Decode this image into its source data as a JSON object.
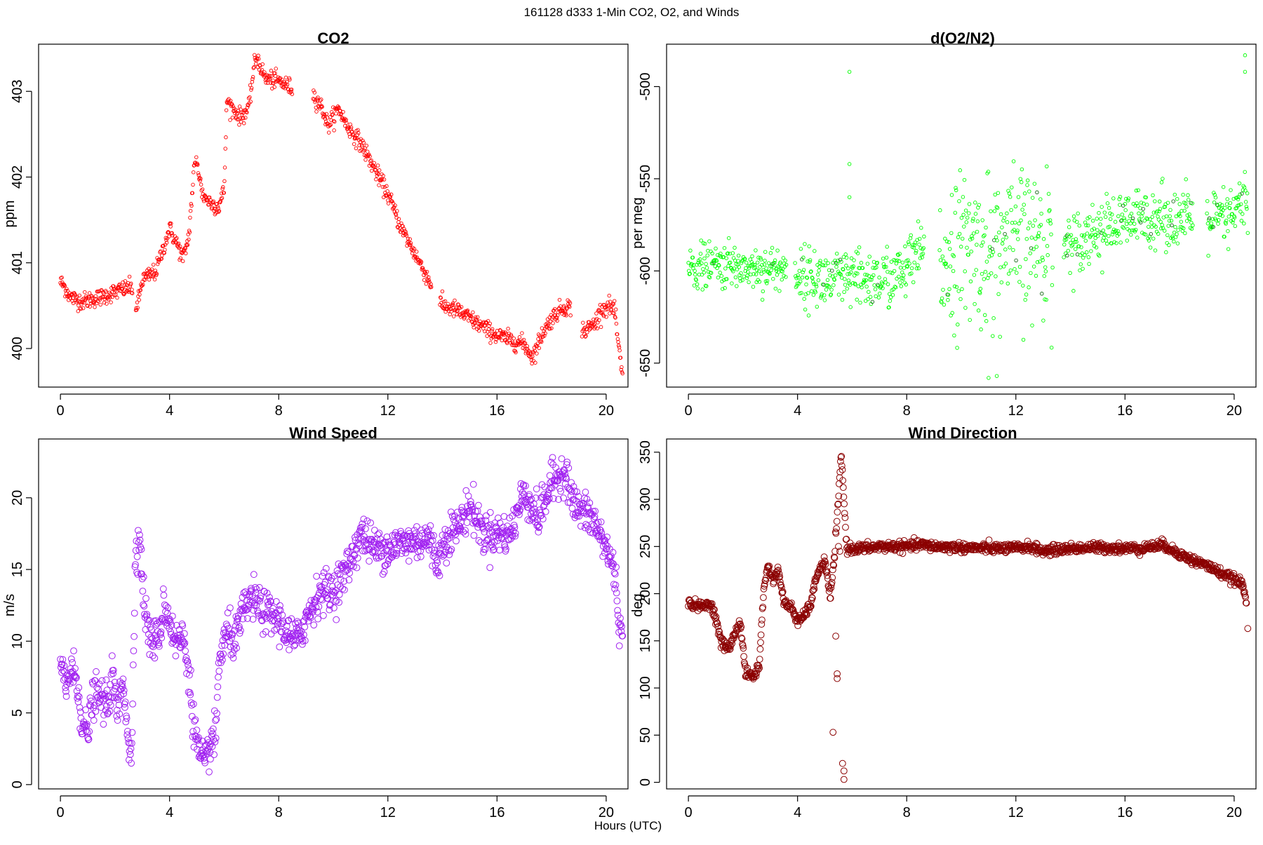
{
  "figure": {
    "suptitle": "161128   d333   1-Min CO2, O2, and Winds",
    "xlabel": "Hours (UTC)"
  },
  "chart_data": [
    {
      "id": "co2",
      "type": "scatter",
      "title": "CO2",
      "xlabel": "",
      "ylabel": "ppm",
      "xlim": [
        -0.8,
        20.8
      ],
      "ylim": [
        399.55,
        403.55
      ],
      "xticks": [
        0,
        4,
        8,
        12,
        16,
        20
      ],
      "yticks": [
        400,
        401,
        402,
        403
      ],
      "color": "#ff0000",
      "marker_size": "small",
      "grid": false,
      "anchors": [
        [
          0.0,
          400.78
        ],
        [
          0.2,
          400.7
        ],
        [
          0.35,
          400.6
        ],
        [
          0.8,
          400.55
        ],
        [
          1.5,
          400.6
        ],
        [
          2.0,
          400.66
        ],
        [
          2.6,
          400.72
        ],
        [
          2.8,
          400.45
        ],
        [
          3.0,
          400.8
        ],
        [
          3.5,
          400.9
        ],
        [
          4.0,
          401.4
        ],
        [
          4.3,
          401.2
        ],
        [
          4.5,
          401.05
        ],
        [
          4.7,
          401.3
        ],
        [
          4.9,
          402.1
        ],
        [
          5.0,
          402.2
        ],
        [
          5.2,
          401.8
        ],
        [
          5.5,
          401.7
        ],
        [
          5.8,
          401.65
        ],
        [
          6.0,
          401.85
        ],
        [
          6.1,
          402.9
        ],
        [
          6.3,
          402.8
        ],
        [
          6.6,
          402.7
        ],
        [
          6.9,
          402.8
        ],
        [
          7.1,
          403.3
        ],
        [
          7.2,
          403.4
        ],
        [
          7.5,
          403.15
        ],
        [
          8.0,
          403.12
        ],
        [
          8.4,
          403.05
        ],
        [
          9.3,
          402.95
        ],
        [
          9.6,
          402.8
        ],
        [
          9.8,
          402.6
        ],
        [
          10.2,
          402.8
        ],
        [
          10.5,
          402.6
        ],
        [
          11.0,
          402.4
        ],
        [
          11.5,
          402.1
        ],
        [
          12.0,
          401.8
        ],
        [
          12.5,
          401.4
        ],
        [
          13.0,
          401.1
        ],
        [
          13.5,
          400.8
        ],
        [
          14.0,
          400.5
        ],
        [
          14.5,
          400.45
        ],
        [
          15.0,
          400.35
        ],
        [
          15.5,
          400.25
        ],
        [
          16.0,
          400.15
        ],
        [
          16.5,
          400.1
        ],
        [
          17.0,
          400.05
        ],
        [
          17.3,
          399.9
        ],
        [
          17.7,
          400.2
        ],
        [
          18.0,
          400.35
        ],
        [
          18.3,
          400.45
        ],
        [
          18.6,
          400.5
        ],
        [
          19.2,
          400.2
        ],
        [
          19.6,
          400.3
        ],
        [
          19.8,
          400.45
        ],
        [
          20.1,
          400.5
        ],
        [
          20.3,
          400.45
        ],
        [
          20.5,
          399.9
        ],
        [
          20.6,
          399.65
        ]
      ],
      "gaps": [
        [
          2.65,
          2.75
        ],
        [
          8.5,
          9.25
        ],
        [
          13.6,
          13.9
        ],
        [
          18.7,
          19.1
        ]
      ],
      "noise": 0.05,
      "n_points": 1180
    },
    {
      "id": "o2",
      "type": "scatter",
      "title": "d(O2/N2)",
      "xlabel": "",
      "ylabel": "per meg",
      "xlim": [
        -0.8,
        20.8
      ],
      "ylim": [
        -663,
        -477
      ],
      "xticks": [
        0,
        4,
        8,
        12,
        16,
        20
      ],
      "yticks": [
        -500,
        -550,
        -600,
        -650
      ],
      "color": "#00ff00",
      "marker_size": "small",
      "grid": false,
      "anchors": [
        [
          0.0,
          -598
        ],
        [
          1.0,
          -597
        ],
        [
          2.0,
          -598
        ],
        [
          3.5,
          -599
        ],
        [
          4.0,
          -602
        ],
        [
          5.0,
          -605
        ],
        [
          6.0,
          -605
        ],
        [
          7.0,
          -605
        ],
        [
          7.8,
          -602
        ],
        [
          8.5,
          -590
        ],
        [
          9.2,
          -595
        ],
        [
          10.0,
          -588
        ],
        [
          11.0,
          -590
        ],
        [
          12.0,
          -585
        ],
        [
          13.0,
          -585
        ],
        [
          14.0,
          -585
        ],
        [
          15.0,
          -578
        ],
        [
          16.0,
          -574
        ],
        [
          17.0,
          -570
        ],
        [
          18.0,
          -572
        ],
        [
          19.0,
          -572
        ],
        [
          19.8,
          -572
        ],
        [
          20.5,
          -560
        ]
      ],
      "noise_by_segment": [
        [
          0,
          4.2,
          6
        ],
        [
          4.2,
          8.5,
          8
        ],
        [
          9.0,
          13.5,
          20
        ],
        [
          13.8,
          20.6,
          8
        ]
      ],
      "gaps": [
        [
          3.6,
          3.9
        ],
        [
          8.65,
          9.2
        ],
        [
          13.35,
          13.75
        ],
        [
          18.5,
          19.0
        ]
      ],
      "outliers": [
        [
          5.9,
          -492
        ],
        [
          5.9,
          -542
        ],
        [
          5.9,
          -560
        ],
        [
          20.4,
          -483
        ],
        [
          20.4,
          -492
        ],
        [
          11.0,
          -658
        ],
        [
          11.3,
          -657
        ]
      ],
      "n_points": 1150
    },
    {
      "id": "ws",
      "type": "scatter",
      "title": "Wind Speed",
      "xlabel": "",
      "ylabel": "m/s",
      "xlim": [
        -0.8,
        20.8
      ],
      "ylim": [
        -0.3,
        24.1
      ],
      "xticks": [
        0,
        4,
        8,
        12,
        16,
        20
      ],
      "yticks": [
        0,
        5,
        10,
        15,
        20
      ],
      "color": "#a020f0",
      "marker_size": "large",
      "grid": false,
      "anchors": [
        [
          0.0,
          8.2
        ],
        [
          0.2,
          7.0
        ],
        [
          0.4,
          8.0
        ],
        [
          0.6,
          7.4
        ],
        [
          0.8,
          4.2
        ],
        [
          1.0,
          3.5
        ],
        [
          1.2,
          6.2
        ],
        [
          1.5,
          6.0
        ],
        [
          1.7,
          5.4
        ],
        [
          1.9,
          7.5
        ],
        [
          2.1,
          5.0
        ],
        [
          2.3,
          7.5
        ],
        [
          2.5,
          3.0
        ],
        [
          2.6,
          1.2
        ],
        [
          2.75,
          16.5
        ],
        [
          2.9,
          17.0
        ],
        [
          3.1,
          12.0
        ],
        [
          3.3,
          10.0
        ],
        [
          3.6,
          10.2
        ],
        [
          3.8,
          12.5
        ],
        [
          4.0,
          11.5
        ],
        [
          4.2,
          10.0
        ],
        [
          4.5,
          10.2
        ],
        [
          4.7,
          8.0
        ],
        [
          4.9,
          4.0
        ],
        [
          5.1,
          2.0
        ],
        [
          5.3,
          1.2
        ],
        [
          5.5,
          3.0
        ],
        [
          5.7,
          3.2
        ],
        [
          5.8,
          8.5
        ],
        [
          6.1,
          10.6
        ],
        [
          6.4,
          10.0
        ],
        [
          6.7,
          12.0
        ],
        [
          7.0,
          13.0
        ],
        [
          7.5,
          12.0
        ],
        [
          8.0,
          11.5
        ],
        [
          8.5,
          10.0
        ],
        [
          8.7,
          10.2
        ],
        [
          9.0,
          11.5
        ],
        [
          9.5,
          13.5
        ],
        [
          10.0,
          13.5
        ],
        [
          10.5,
          15.0
        ],
        [
          11.0,
          17.5
        ],
        [
          11.5,
          16.5
        ],
        [
          12.0,
          16.5
        ],
        [
          12.5,
          16.8
        ],
        [
          13.0,
          17.0
        ],
        [
          13.5,
          17.2
        ],
        [
          13.8,
          15.5
        ],
        [
          14.2,
          17.5
        ],
        [
          14.6,
          18.0
        ],
        [
          15.0,
          19.5
        ],
        [
          15.5,
          17.5
        ],
        [
          16.0,
          17.5
        ],
        [
          16.5,
          17.5
        ],
        [
          17.0,
          20.5
        ],
        [
          17.5,
          18.5
        ],
        [
          18.0,
          21.0
        ],
        [
          18.5,
          22.0
        ],
        [
          18.8,
          19.5
        ],
        [
          19.5,
          18.5
        ],
        [
          20.0,
          16.5
        ],
        [
          20.3,
          15.0
        ],
        [
          20.5,
          11.0
        ],
        [
          20.6,
          9.8
        ]
      ],
      "noise": 0.7,
      "n_points": 1230
    },
    {
      "id": "wd",
      "type": "scatter",
      "title": "Wind Direction",
      "xlabel": "",
      "ylabel": "deg",
      "xlim": [
        -0.8,
        20.8
      ],
      "ylim": [
        -7,
        364
      ],
      "xticks": [
        0,
        4,
        8,
        12,
        16,
        20
      ],
      "yticks": [
        0,
        50,
        100,
        150,
        200,
        250,
        300,
        350
      ],
      "color": "#8b0000",
      "marker_size": "large",
      "grid": false,
      "anchors": [
        [
          0.0,
          190
        ],
        [
          0.5,
          186
        ],
        [
          0.8,
          190
        ],
        [
          1.0,
          175
        ],
        [
          1.2,
          148
        ],
        [
          1.5,
          142
        ],
        [
          1.8,
          165
        ],
        [
          1.9,
          170
        ],
        [
          2.1,
          115
        ],
        [
          2.4,
          112
        ],
        [
          2.6,
          125
        ],
        [
          2.75,
          200
        ],
        [
          2.9,
          230
        ],
        [
          3.1,
          215
        ],
        [
          3.3,
          225
        ],
        [
          3.5,
          190
        ],
        [
          3.8,
          185
        ],
        [
          4.0,
          170
        ],
        [
          4.2,
          175
        ],
        [
          4.5,
          190
        ],
        [
          4.7,
          220
        ],
        [
          5.0,
          235
        ],
        [
          5.2,
          195
        ],
        [
          5.35,
          240
        ],
        [
          5.5,
          300
        ],
        [
          5.6,
          350
        ],
        [
          5.8,
          248
        ],
        [
          6.5,
          248
        ],
        [
          7.0,
          250
        ],
        [
          8.0,
          250
        ],
        [
          8.5,
          252
        ],
        [
          9.0,
          250
        ],
        [
          10.0,
          249
        ],
        [
          11.0,
          248
        ],
        [
          12.0,
          248
        ],
        [
          12.5,
          250
        ],
        [
          13.0,
          245
        ],
        [
          14.0,
          248
        ],
        [
          15.0,
          249
        ],
        [
          16.0,
          248
        ],
        [
          16.5,
          248
        ],
        [
          17.0,
          250
        ],
        [
          17.4,
          252
        ],
        [
          17.8,
          245
        ],
        [
          18.5,
          235
        ],
        [
          19.0,
          230
        ],
        [
          19.5,
          222
        ],
        [
          20.0,
          215
        ],
        [
          20.3,
          210
        ],
        [
          20.45,
          190
        ]
      ],
      "noise": 2.5,
      "outliers": [
        [
          5.45,
          115
        ],
        [
          5.45,
          110
        ],
        [
          5.4,
          155
        ],
        [
          5.55,
          245
        ],
        [
          5.3,
          53
        ],
        [
          5.65,
          20
        ],
        [
          5.7,
          12
        ],
        [
          5.7,
          3
        ],
        [
          20.5,
          163
        ],
        [
          5.5,
          250
        ]
      ],
      "n_points": 1230
    }
  ]
}
